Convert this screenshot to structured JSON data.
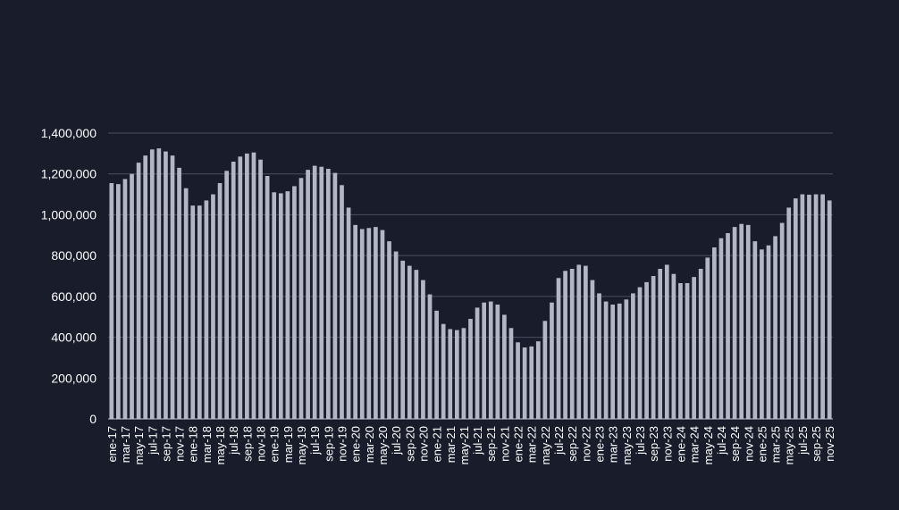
{
  "colors": {
    "background": "#181c2b",
    "bar": "#b3b6c4",
    "grid": "#4a4f63",
    "axis": "#c9ccd6",
    "text": "#ffffff"
  },
  "chart_data": {
    "type": "bar",
    "title": "",
    "xlabel": "",
    "ylabel": "",
    "ylim": [
      0,
      1400000
    ],
    "yticks": [
      "0",
      "200,000",
      "400,000",
      "600,000",
      "800,000",
      "1,000,000",
      "1,200,000",
      "1,400,000"
    ],
    "ytick_values": [
      0,
      200000,
      400000,
      600000,
      800000,
      1000000,
      1200000,
      1400000
    ],
    "grid": true,
    "legend": "none",
    "label_every": 2,
    "categories": [
      "ene-17",
      "feb-17",
      "mar-17",
      "abr-17",
      "may-17",
      "jun-17",
      "jul-17",
      "ago-17",
      "sep-17",
      "oct-17",
      "nov-17",
      "dic-17",
      "ene-18",
      "feb-18",
      "mar-18",
      "abr-18",
      "may-18",
      "jun-18",
      "jul-18",
      "ago-18",
      "sep-18",
      "oct-18",
      "nov-18",
      "dic-18",
      "ene-19",
      "feb-19",
      "mar-19",
      "abr-19",
      "may-19",
      "jun-19",
      "jul-19",
      "ago-19",
      "sep-19",
      "oct-19",
      "nov-19",
      "dic-19",
      "ene-20",
      "feb-20",
      "mar-20",
      "abr-20",
      "may-20",
      "jun-20",
      "jul-20",
      "ago-20",
      "sep-20",
      "oct-20",
      "nov-20",
      "dic-20",
      "ene-21",
      "feb-21",
      "mar-21",
      "abr-21",
      "may-21",
      "jun-21",
      "jul-21",
      "ago-21",
      "sep-21",
      "oct-21",
      "nov-21",
      "dic-21",
      "ene-22",
      "feb-22",
      "mar-22",
      "abr-22",
      "may-22",
      "jun-22",
      "jul-22",
      "ago-22",
      "sep-22",
      "oct-22",
      "nov-22",
      "dic-22",
      "ene-23",
      "feb-23",
      "mar-23",
      "abr-23",
      "may-23",
      "jun-23",
      "jul-23",
      "ago-23",
      "sep-23",
      "oct-23",
      "nov-23",
      "dic-23",
      "ene-24",
      "feb-24",
      "mar-24",
      "abr-24",
      "may-24",
      "jun-24",
      "jul-24",
      "ago-24",
      "sep-24",
      "oct-24",
      "nov-24",
      "dic-24",
      "ene-25",
      "feb-25",
      "mar-25",
      "abr-25",
      "may-25",
      "jun-25",
      "jul-25",
      "ago-25",
      "sep-25",
      "oct-25",
      "nov-25"
    ],
    "values": [
      1155000,
      1150000,
      1175000,
      1200000,
      1255000,
      1290000,
      1320000,
      1325000,
      1310000,
      1290000,
      1230000,
      1130000,
      1045000,
      1045000,
      1070000,
      1100000,
      1155000,
      1215000,
      1260000,
      1285000,
      1300000,
      1305000,
      1270000,
      1190000,
      1110000,
      1105000,
      1115000,
      1140000,
      1180000,
      1220000,
      1240000,
      1235000,
      1225000,
      1205000,
      1145000,
      1035000,
      950000,
      930000,
      935000,
      940000,
      925000,
      870000,
      820000,
      775000,
      750000,
      730000,
      680000,
      610000,
      530000,
      465000,
      440000,
      435000,
      445000,
      490000,
      545000,
      570000,
      575000,
      560000,
      510000,
      445000,
      375000,
      350000,
      355000,
      380000,
      480000,
      570000,
      690000,
      725000,
      735000,
      755000,
      750000,
      680000,
      615000,
      575000,
      560000,
      565000,
      585000,
      615000,
      645000,
      670000,
      700000,
      735000,
      755000,
      710000,
      665000,
      665000,
      695000,
      735000,
      790000,
      840000,
      885000,
      910000,
      940000,
      955000,
      950000,
      870000,
      830000,
      850000,
      895000,
      960000,
      1035000,
      1080000,
      1100000,
      1098000,
      1100000,
      1100000,
      1070000
    ]
  }
}
